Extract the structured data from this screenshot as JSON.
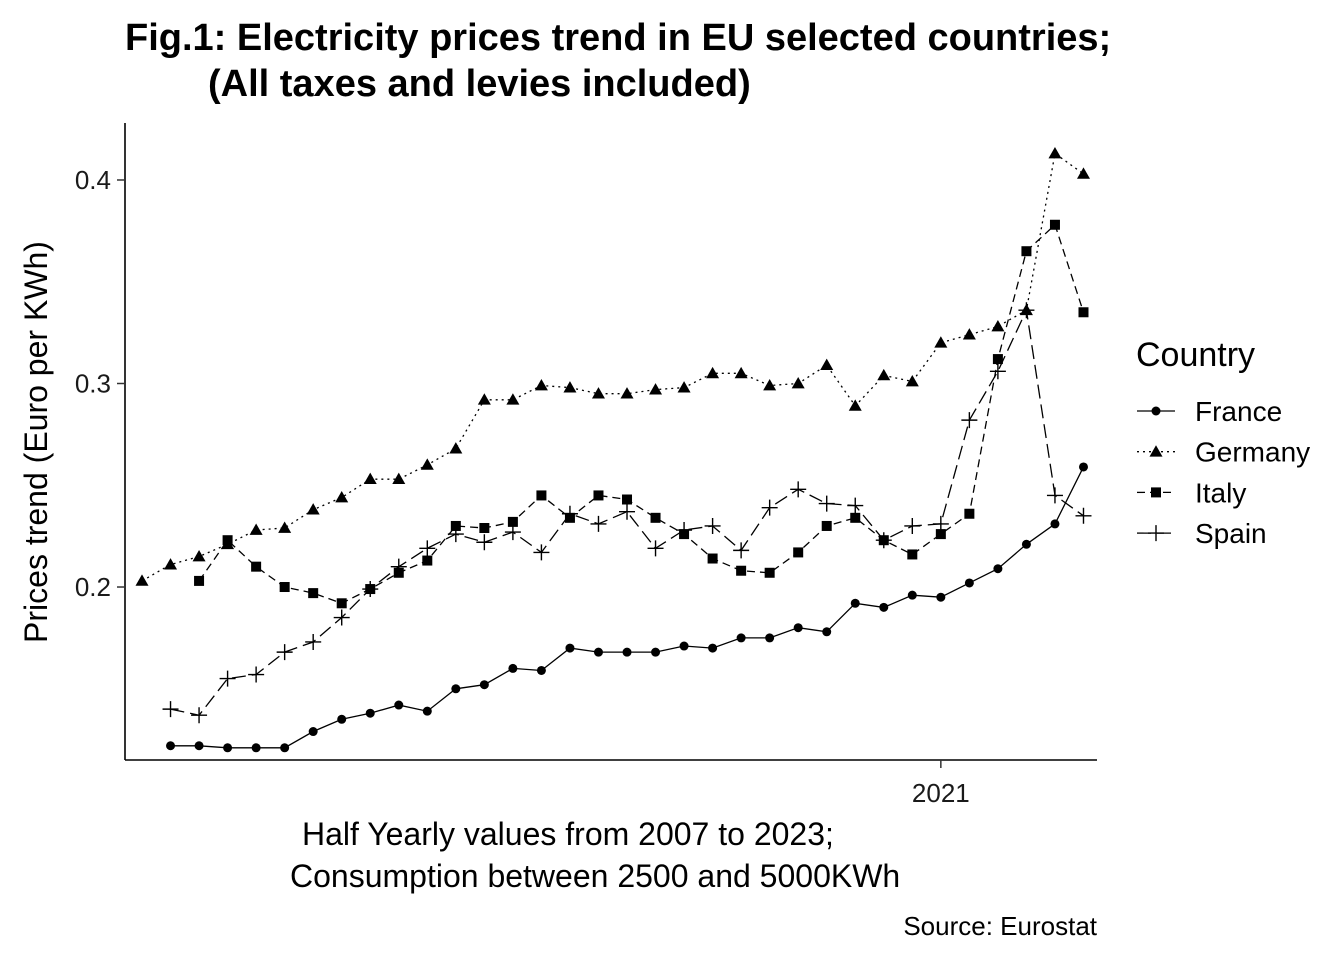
{
  "chart": {
    "title_line1": "Fig.1: Electricity prices trend in EU selected countries;",
    "title_line2": "(All taxes and levies included)",
    "xlabel_line1": "Half Yearly values from 2007 to 2023;",
    "xlabel_line2": "Consumption between 2500 and 5000KWh",
    "ylabel": "Prices trend (Euro per KWh)",
    "caption": "Source: Eurostat",
    "legend_title": "Country"
  },
  "chart_data": {
    "type": "line",
    "title": "Fig.1: Electricity prices trend in EU selected countries; (All taxes and levies included)",
    "xlabel": "Half Yearly values from 2007 to 2023; Consumption between 2500 and 5000KWh",
    "ylabel": "Prices trend (Euro per KWh)",
    "x": [
      "2007-S1",
      "2007-S2",
      "2008-S1",
      "2008-S2",
      "2009-S1",
      "2009-S2",
      "2010-S1",
      "2010-S2",
      "2011-S1",
      "2011-S2",
      "2012-S1",
      "2012-S2",
      "2013-S1",
      "2013-S2",
      "2014-S1",
      "2014-S2",
      "2015-S1",
      "2015-S2",
      "2016-S1",
      "2016-S2",
      "2017-S1",
      "2017-S2",
      "2018-S1",
      "2018-S2",
      "2019-S1",
      "2019-S2",
      "2020-S1",
      "2020-S2",
      "2021-S1",
      "2021-S2",
      "2022-S1",
      "2022-S2",
      "2023-S1",
      "2023-S2"
    ],
    "x_ticks": [
      {
        "at": "2021-S1",
        "label": "2021"
      }
    ],
    "ylim": [
      0.115,
      0.428
    ],
    "y_ticks": [
      0.2,
      0.3,
      0.4
    ],
    "y_tick_labels": [
      "0.2",
      "0.3",
      "0.4"
    ],
    "grid": false,
    "legend_position": "right",
    "series": [
      {
        "name": "France",
        "marker": "circle",
        "dash": "solid",
        "color": "#000000",
        "values": [
          null,
          0.122,
          0.122,
          0.121,
          0.121,
          0.121,
          0.129,
          0.135,
          0.138,
          0.142,
          0.139,
          0.15,
          0.152,
          0.16,
          0.159,
          0.17,
          0.168,
          0.168,
          0.168,
          0.171,
          0.17,
          0.175,
          0.175,
          0.18,
          0.178,
          0.192,
          0.19,
          0.196,
          0.195,
          0.202,
          0.209,
          0.221,
          0.231,
          0.259
        ]
      },
      {
        "name": "Germany",
        "marker": "triangle",
        "dash": "dotted",
        "color": "#000000",
        "values": [
          0.203,
          0.211,
          0.215,
          0.221,
          0.228,
          0.229,
          0.238,
          0.244,
          0.253,
          0.253,
          0.26,
          0.268,
          0.292,
          0.292,
          0.299,
          0.298,
          0.295,
          0.295,
          0.297,
          0.298,
          0.305,
          0.305,
          0.299,
          0.3,
          0.309,
          0.289,
          0.304,
          0.301,
          0.32,
          0.324,
          0.328,
          0.336,
          0.413,
          0.403
        ]
      },
      {
        "name": "Italy",
        "marker": "square",
        "dash": "dashed",
        "color": "#000000",
        "values": [
          null,
          null,
          0.203,
          0.223,
          0.21,
          0.2,
          0.197,
          0.192,
          0.199,
          0.207,
          0.213,
          0.23,
          0.229,
          0.232,
          0.245,
          0.234,
          0.245,
          0.243,
          0.234,
          0.226,
          0.214,
          0.208,
          0.207,
          0.217,
          0.23,
          0.234,
          0.223,
          0.216,
          0.226,
          0.236,
          0.312,
          0.365,
          0.378,
          0.335
        ]
      },
      {
        "name": "Spain",
        "marker": "plus",
        "dash": "longdash",
        "color": "#000000",
        "values": [
          null,
          0.14,
          0.137,
          0.155,
          0.157,
          0.168,
          0.173,
          0.185,
          0.199,
          0.21,
          0.219,
          0.226,
          0.222,
          0.227,
          0.217,
          0.236,
          0.231,
          0.237,
          0.219,
          0.228,
          0.23,
          0.218,
          0.239,
          0.248,
          0.241,
          0.24,
          0.223,
          0.23,
          0.231,
          0.282,
          0.306,
          0.336,
          0.245,
          0.235
        ]
      }
    ]
  }
}
